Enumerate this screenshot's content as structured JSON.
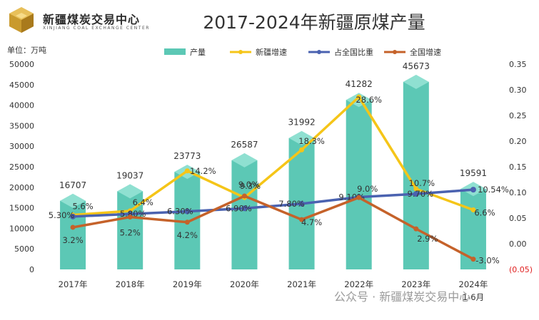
{
  "header": {
    "logo_name": "新疆煤炭交易中心",
    "logo_sub": "XINJIANG COAL EXCHANGE CENTER",
    "unit_label": "单位：万吨"
  },
  "watermark": "公众号 · 新疆煤炭交易中心",
  "colors": {
    "bar": "#5cc8b5",
    "bar_side": "#3fae9c",
    "bar_top": "#8fe0d1",
    "xinjiang_growth": "#f5c518",
    "national_share": "#4a62b0",
    "national_growth": "#c5622a",
    "negative": "#e02020"
  },
  "chart_data": {
    "type": "bar",
    "title": "2017-2024年新疆原煤产量",
    "categories": [
      "2017年",
      "2018年",
      "2019年",
      "2020年",
      "2021年",
      "2022年",
      "2023年",
      "2024年"
    ],
    "category_sub": [
      "",
      "",
      "",
      "",
      "",
      "",
      "",
      "1-6月"
    ],
    "left_axis": {
      "min": 0,
      "max": 50000,
      "step": 5000,
      "ticks": [
        "0",
        "5000",
        "10000",
        "15000",
        "20000",
        "25000",
        "30000",
        "35000",
        "40000",
        "45000",
        "50000"
      ]
    },
    "right_axis": {
      "min": -0.05,
      "max": 0.35,
      "step": 0.05,
      "ticks": [
        "(0.05)",
        "0.00",
        "0.05",
        "0.10",
        "0.15",
        "0.20",
        "0.25",
        "0.30",
        "0.35"
      ]
    },
    "legend": [
      "产量",
      "新疆增速",
      "占全国比重",
      "全国增速"
    ],
    "bar_series": {
      "name": "产量",
      "values": [
        16707,
        19037,
        23773,
        26587,
        31992,
        41282,
        45673,
        19591
      ],
      "labels": [
        "16707",
        "19037",
        "23773",
        "26587",
        "31992",
        "41282",
        "45673",
        "19591"
      ]
    },
    "line_series": [
      {
        "name": "新疆增速",
        "values": [
          0.056,
          0.064,
          0.142,
          0.09,
          0.183,
          0.286,
          0.107,
          0.066
        ],
        "labels": [
          "5.6%",
          "6.4%",
          "14.2%",
          "9.0%",
          "18.3%",
          "28.6%",
          "10.7%",
          "6.6%"
        ]
      },
      {
        "name": "占全国比重",
        "values": [
          0.053,
          0.058,
          0.063,
          0.069,
          0.078,
          0.091,
          0.097,
          0.1054
        ],
        "labels": [
          "5.30%",
          "5.80%",
          "6.30%",
          "6.90%",
          "7.80%",
          "9.10%",
          "9.70%",
          "10.54%"
        ]
      },
      {
        "name": "全国增速",
        "values": [
          0.032,
          0.052,
          0.042,
          0.093,
          0.047,
          0.09,
          0.029,
          -0.03
        ],
        "labels": [
          "3.2%",
          "5.2%",
          "4.2%",
          "9.3%",
          "4.7%",
          "9.0%",
          "2.9%",
          "-3.0%"
        ]
      }
    ]
  }
}
